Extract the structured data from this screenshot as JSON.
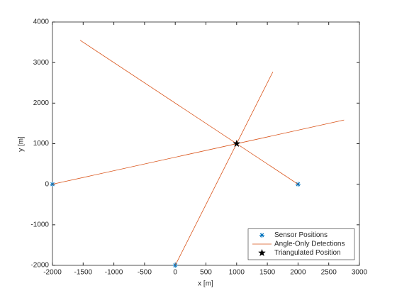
{
  "chart_data": {
    "type": "scatter-line",
    "xlabel": "x [m]",
    "ylabel": "y [m]",
    "xlim": [
      -2000,
      3000
    ],
    "xticks": [
      -2000,
      -1500,
      -1000,
      -500,
      0,
      500,
      1000,
      1500,
      2000,
      2500,
      3000
    ],
    "ylim": [
      -2000,
      4000
    ],
    "yticks": [
      -2000,
      -1000,
      0,
      1000,
      2000,
      3000,
      4000
    ],
    "grid": false,
    "legend": "lower right",
    "series": [
      {
        "name": "Sensor Positions",
        "type": "scatter",
        "marker": "asterisk",
        "color": "#0072bd",
        "x": [
          -2000,
          0,
          2000
        ],
        "values": [
          0,
          -2000,
          0
        ]
      },
      {
        "name": "Angle-Only Detections",
        "type": "line",
        "color": "#d95319",
        "x": [
          -2000,
          2750,
          null,
          0,
          1590,
          null,
          2000,
          -1550
        ],
        "values": [
          0,
          1583,
          null,
          -2000,
          2770,
          null,
          0,
          3550
        ]
      },
      {
        "name": "Triangulated Position",
        "type": "scatter",
        "marker": "pentagram",
        "color": "#000000",
        "x": [
          1000
        ],
        "values": [
          1000
        ]
      }
    ]
  }
}
